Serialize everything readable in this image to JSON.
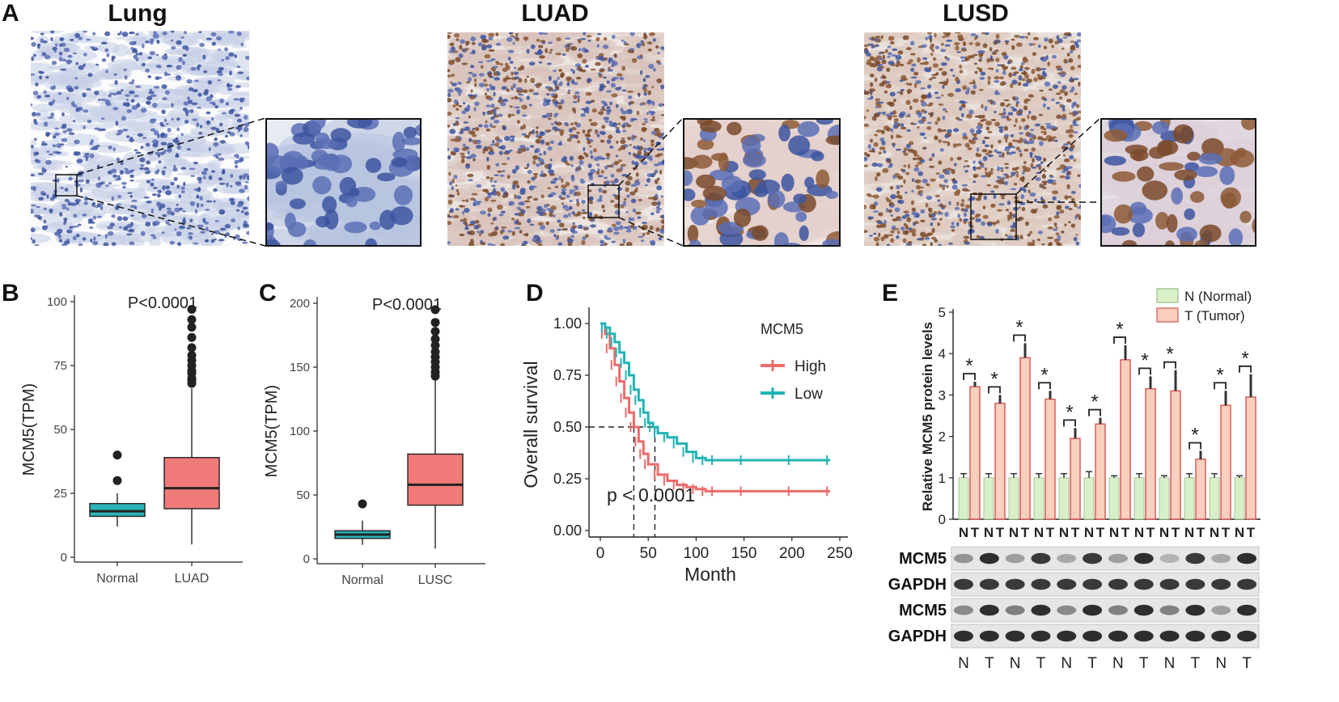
{
  "panels": {
    "a": {
      "letter": "A",
      "tissues": [
        "Lung",
        "LUAD",
        "LUSD"
      ]
    },
    "b": {
      "letter": "B",
      "pvalue": "P<0.0001",
      "ylabel": "MCM5(TPM)",
      "groups": [
        "Normal",
        "LUAD"
      ],
      "yticks": [
        "0",
        "25",
        "50",
        "75",
        "100"
      ]
    },
    "c": {
      "letter": "C",
      "pvalue": "P<0.0001",
      "ylabel": "MCM5(TPM)",
      "groups": [
        "Normal",
        "LUSC"
      ],
      "yticks": [
        "0",
        "50",
        "100",
        "150",
        "200"
      ]
    },
    "d": {
      "letter": "D",
      "ylabel": "Overall survival",
      "xlabel": "Month",
      "pvalue": "p < 0.0001",
      "legend_title": "MCM5",
      "legend": [
        "High",
        "Low"
      ],
      "xticks": [
        "0",
        "50",
        "100",
        "150",
        "200",
        "250"
      ],
      "yticks": [
        "0.00",
        "0.25",
        "0.50",
        "0.75",
        "1.00"
      ]
    },
    "e": {
      "letter": "E",
      "ylabel": "Relative MCM5 protein levels",
      "legend": [
        "N (Normal)",
        "T (Tumor)"
      ],
      "yticks": [
        "0",
        "1",
        "2",
        "3",
        "4",
        "5"
      ],
      "lane_n": "N",
      "lane_t": "T",
      "star": "*",
      "blot_labels": [
        "MCM5",
        "GAPDH",
        "MCM5",
        "GAPDH"
      ]
    }
  },
  "colors": {
    "normal_box": "#2bb3b8",
    "tumor_box": "#f07a78",
    "high": "#ee6b6b",
    "low": "#22b3b4",
    "bar_normal": "#d8f0c8",
    "bar_tumor": "#f9cfbd",
    "bar_edge": "#d9534f"
  },
  "chart_data": [
    {
      "panel": "B",
      "type": "box",
      "categories": [
        "Normal",
        "LUAD"
      ],
      "ylim": [
        0,
        100
      ],
      "boxes": [
        {
          "group": "Normal",
          "min": 12,
          "q1": 16,
          "median": 18,
          "q3": 21,
          "max": 25,
          "outliers": [
            30,
            40
          ]
        },
        {
          "group": "LUAD",
          "min": 5,
          "q1": 19,
          "median": 27,
          "q3": 39,
          "max": 66,
          "outliers": [
            68,
            69,
            70,
            72,
            73,
            75,
            77,
            79,
            82,
            86,
            90,
            93,
            97
          ]
        }
      ]
    },
    {
      "panel": "C",
      "type": "box",
      "categories": [
        "Normal",
        "LUSC"
      ],
      "ylim": [
        0,
        200
      ],
      "boxes": [
        {
          "group": "Normal",
          "min": 11,
          "q1": 16,
          "median": 19,
          "q3": 22,
          "max": 30,
          "outliers": [
            43
          ]
        },
        {
          "group": "LUSC",
          "min": 8,
          "q1": 42,
          "median": 58,
          "q3": 82,
          "max": 140,
          "outliers": [
            143,
            146,
            150,
            154,
            158,
            162,
            167,
            172,
            178,
            185,
            195
          ]
        }
      ]
    },
    {
      "panel": "D",
      "type": "line",
      "xlim": [
        0,
        250
      ],
      "ylim": [
        0,
        1
      ],
      "series": [
        {
          "name": "High",
          "x": [
            0,
            5,
            10,
            15,
            20,
            25,
            30,
            35,
            40,
            45,
            50,
            60,
            70,
            80,
            90,
            100,
            110,
            120,
            150,
            200,
            240
          ],
          "y": [
            1.0,
            0.95,
            0.88,
            0.8,
            0.72,
            0.64,
            0.57,
            0.5,
            0.43,
            0.37,
            0.32,
            0.27,
            0.24,
            0.22,
            0.21,
            0.2,
            0.19,
            0.19,
            0.19,
            0.19,
            0.19
          ]
        },
        {
          "name": "Low",
          "x": [
            0,
            5,
            10,
            15,
            20,
            25,
            30,
            35,
            40,
            45,
            50,
            55,
            60,
            70,
            80,
            90,
            100,
            110,
            120,
            150,
            200,
            240
          ],
          "y": [
            1.0,
            0.98,
            0.95,
            0.91,
            0.86,
            0.81,
            0.75,
            0.68,
            0.63,
            0.57,
            0.52,
            0.5,
            0.47,
            0.45,
            0.42,
            0.38,
            0.35,
            0.34,
            0.34,
            0.34,
            0.34,
            0.34
          ]
        }
      ]
    },
    {
      "panel": "E",
      "type": "bar",
      "ylim": [
        0,
        5
      ],
      "series": [
        {
          "name": "N (Normal)",
          "values": [
            1,
            1,
            1,
            1,
            1,
            1,
            1,
            1,
            1,
            1,
            1,
            1
          ]
        },
        {
          "name": "T (Tumor)",
          "values": [
            3.2,
            2.8,
            3.9,
            2.9,
            1.95,
            2.3,
            3.85,
            3.15,
            3.1,
            1.45,
            2.75,
            2.95
          ]
        }
      ],
      "errors": {
        "N": [
          0.1,
          0.1,
          0.1,
          0.1,
          0.1,
          0.15,
          0.05,
          0.1,
          0.05,
          0.1,
          0.1,
          0.05
        ],
        "T": [
          0.12,
          0.2,
          0.35,
          0.2,
          0.25,
          0.15,
          0.35,
          0.3,
          0.5,
          0.2,
          0.35,
          0.55
        ]
      }
    }
  ]
}
